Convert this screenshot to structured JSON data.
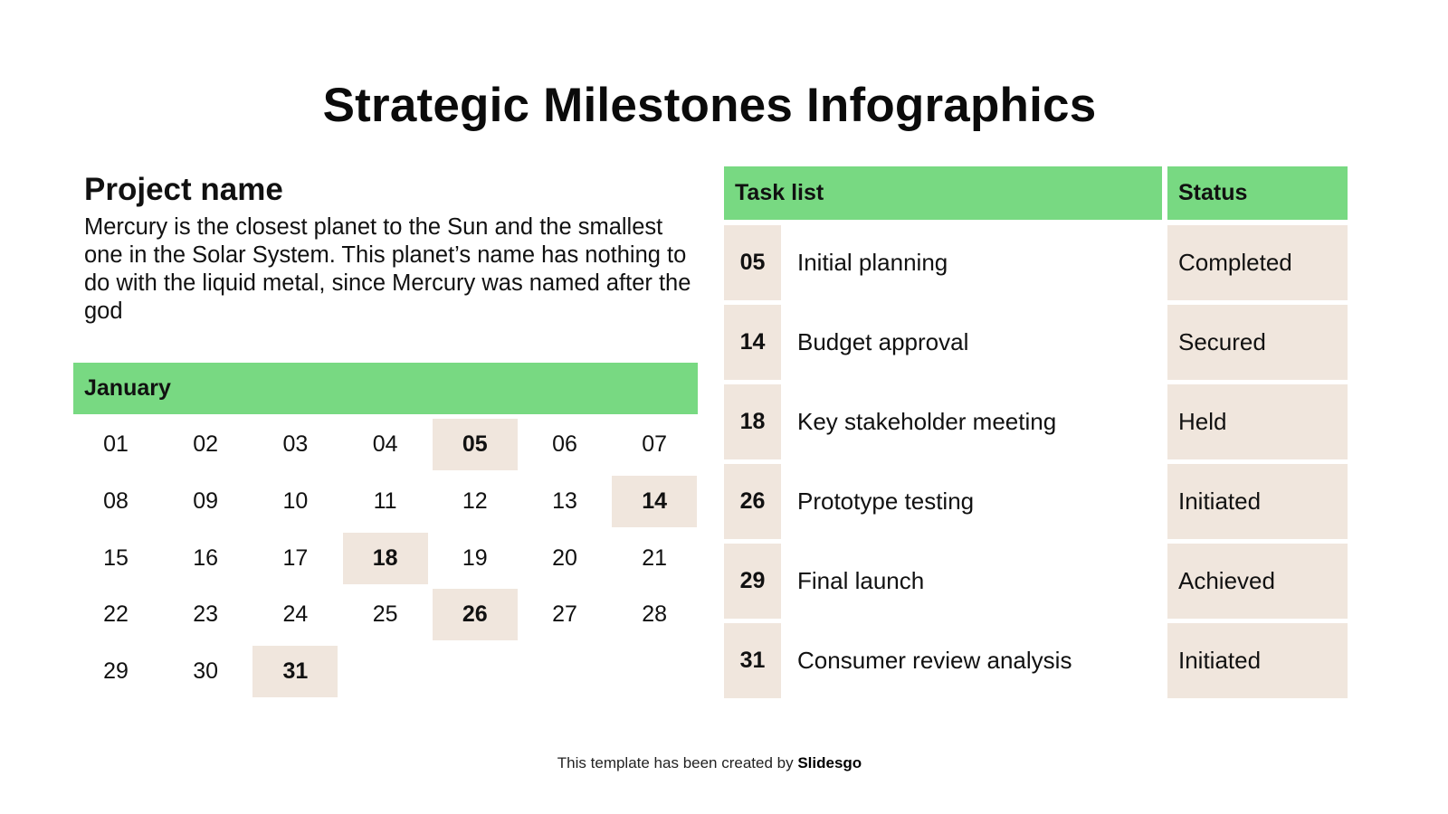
{
  "title": "Strategic Milestones Infographics",
  "project": {
    "name": "Project name",
    "description": "Mercury is the closest planet to the Sun and the smallest one in the Solar System. This planet’s name has nothing to do with the liquid metal, since Mercury was named after the god"
  },
  "calendar": {
    "month": "January",
    "days": [
      "01",
      "02",
      "03",
      "04",
      "05",
      "06",
      "07",
      "08",
      "09",
      "10",
      "11",
      "12",
      "13",
      "14",
      "15",
      "16",
      "17",
      "18",
      "19",
      "20",
      "21",
      "22",
      "23",
      "24",
      "25",
      "26",
      "27",
      "28",
      "29",
      "30",
      "31"
    ],
    "highlighted": [
      "05",
      "14",
      "18",
      "26",
      "31"
    ]
  },
  "tasks": {
    "header_tasks": "Task list",
    "header_status": "Status",
    "rows": [
      {
        "day": "05",
        "label": "Initial planning",
        "status": "Completed"
      },
      {
        "day": "14",
        "label": "Budget approval",
        "status": "Secured"
      },
      {
        "day": "18",
        "label": "Key stakeholder meeting",
        "status": "Held"
      },
      {
        "day": "26",
        "label": "Prototype testing",
        "status": "Initiated"
      },
      {
        "day": "29",
        "label": "Final launch",
        "status": "Achieved"
      },
      {
        "day": "31",
        "label": "Consumer review analysis",
        "status": "Initiated"
      }
    ]
  },
  "footer": {
    "prefix": "This template has been created by ",
    "brand": "Slidesgo"
  },
  "colors": {
    "accent_green": "#78D982",
    "highlight_beige": "#F0E6DD"
  }
}
